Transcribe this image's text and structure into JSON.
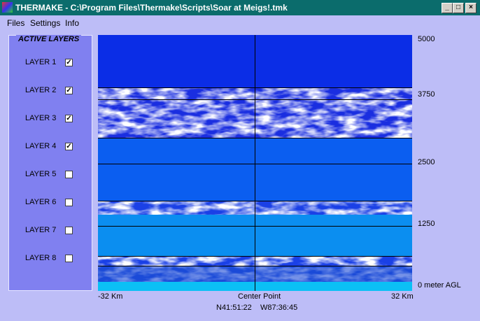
{
  "window": {
    "title": "THERMAKE - C:\\Program Files\\Thermake\\Scripts\\Soar at Meigs!.tmk"
  },
  "menu": [
    "Files",
    "Settings",
    "Info"
  ],
  "panel": {
    "title": "ACTIVE LAYERS",
    "layers": [
      {
        "label": "LAYER 1",
        "checked": true
      },
      {
        "label": "LAYER 2",
        "checked": true
      },
      {
        "label": "LAYER 3",
        "checked": true
      },
      {
        "label": "LAYER 4",
        "checked": true
      },
      {
        "label": "LAYER 5",
        "checked": false
      },
      {
        "label": "LAYER 6",
        "checked": false
      },
      {
        "label": "LAYER 7",
        "checked": false
      },
      {
        "label": "LAYER 8",
        "checked": false
      }
    ]
  },
  "view": {
    "altitude_labels": [
      "5000",
      "3750",
      "2500",
      "1250",
      "0 meter AGL"
    ],
    "x_labels": [
      "-32 Km",
      "Center Point",
      "32 Km"
    ],
    "coordinates": [
      "N41:51:22",
      "W87:36:45"
    ]
  }
}
